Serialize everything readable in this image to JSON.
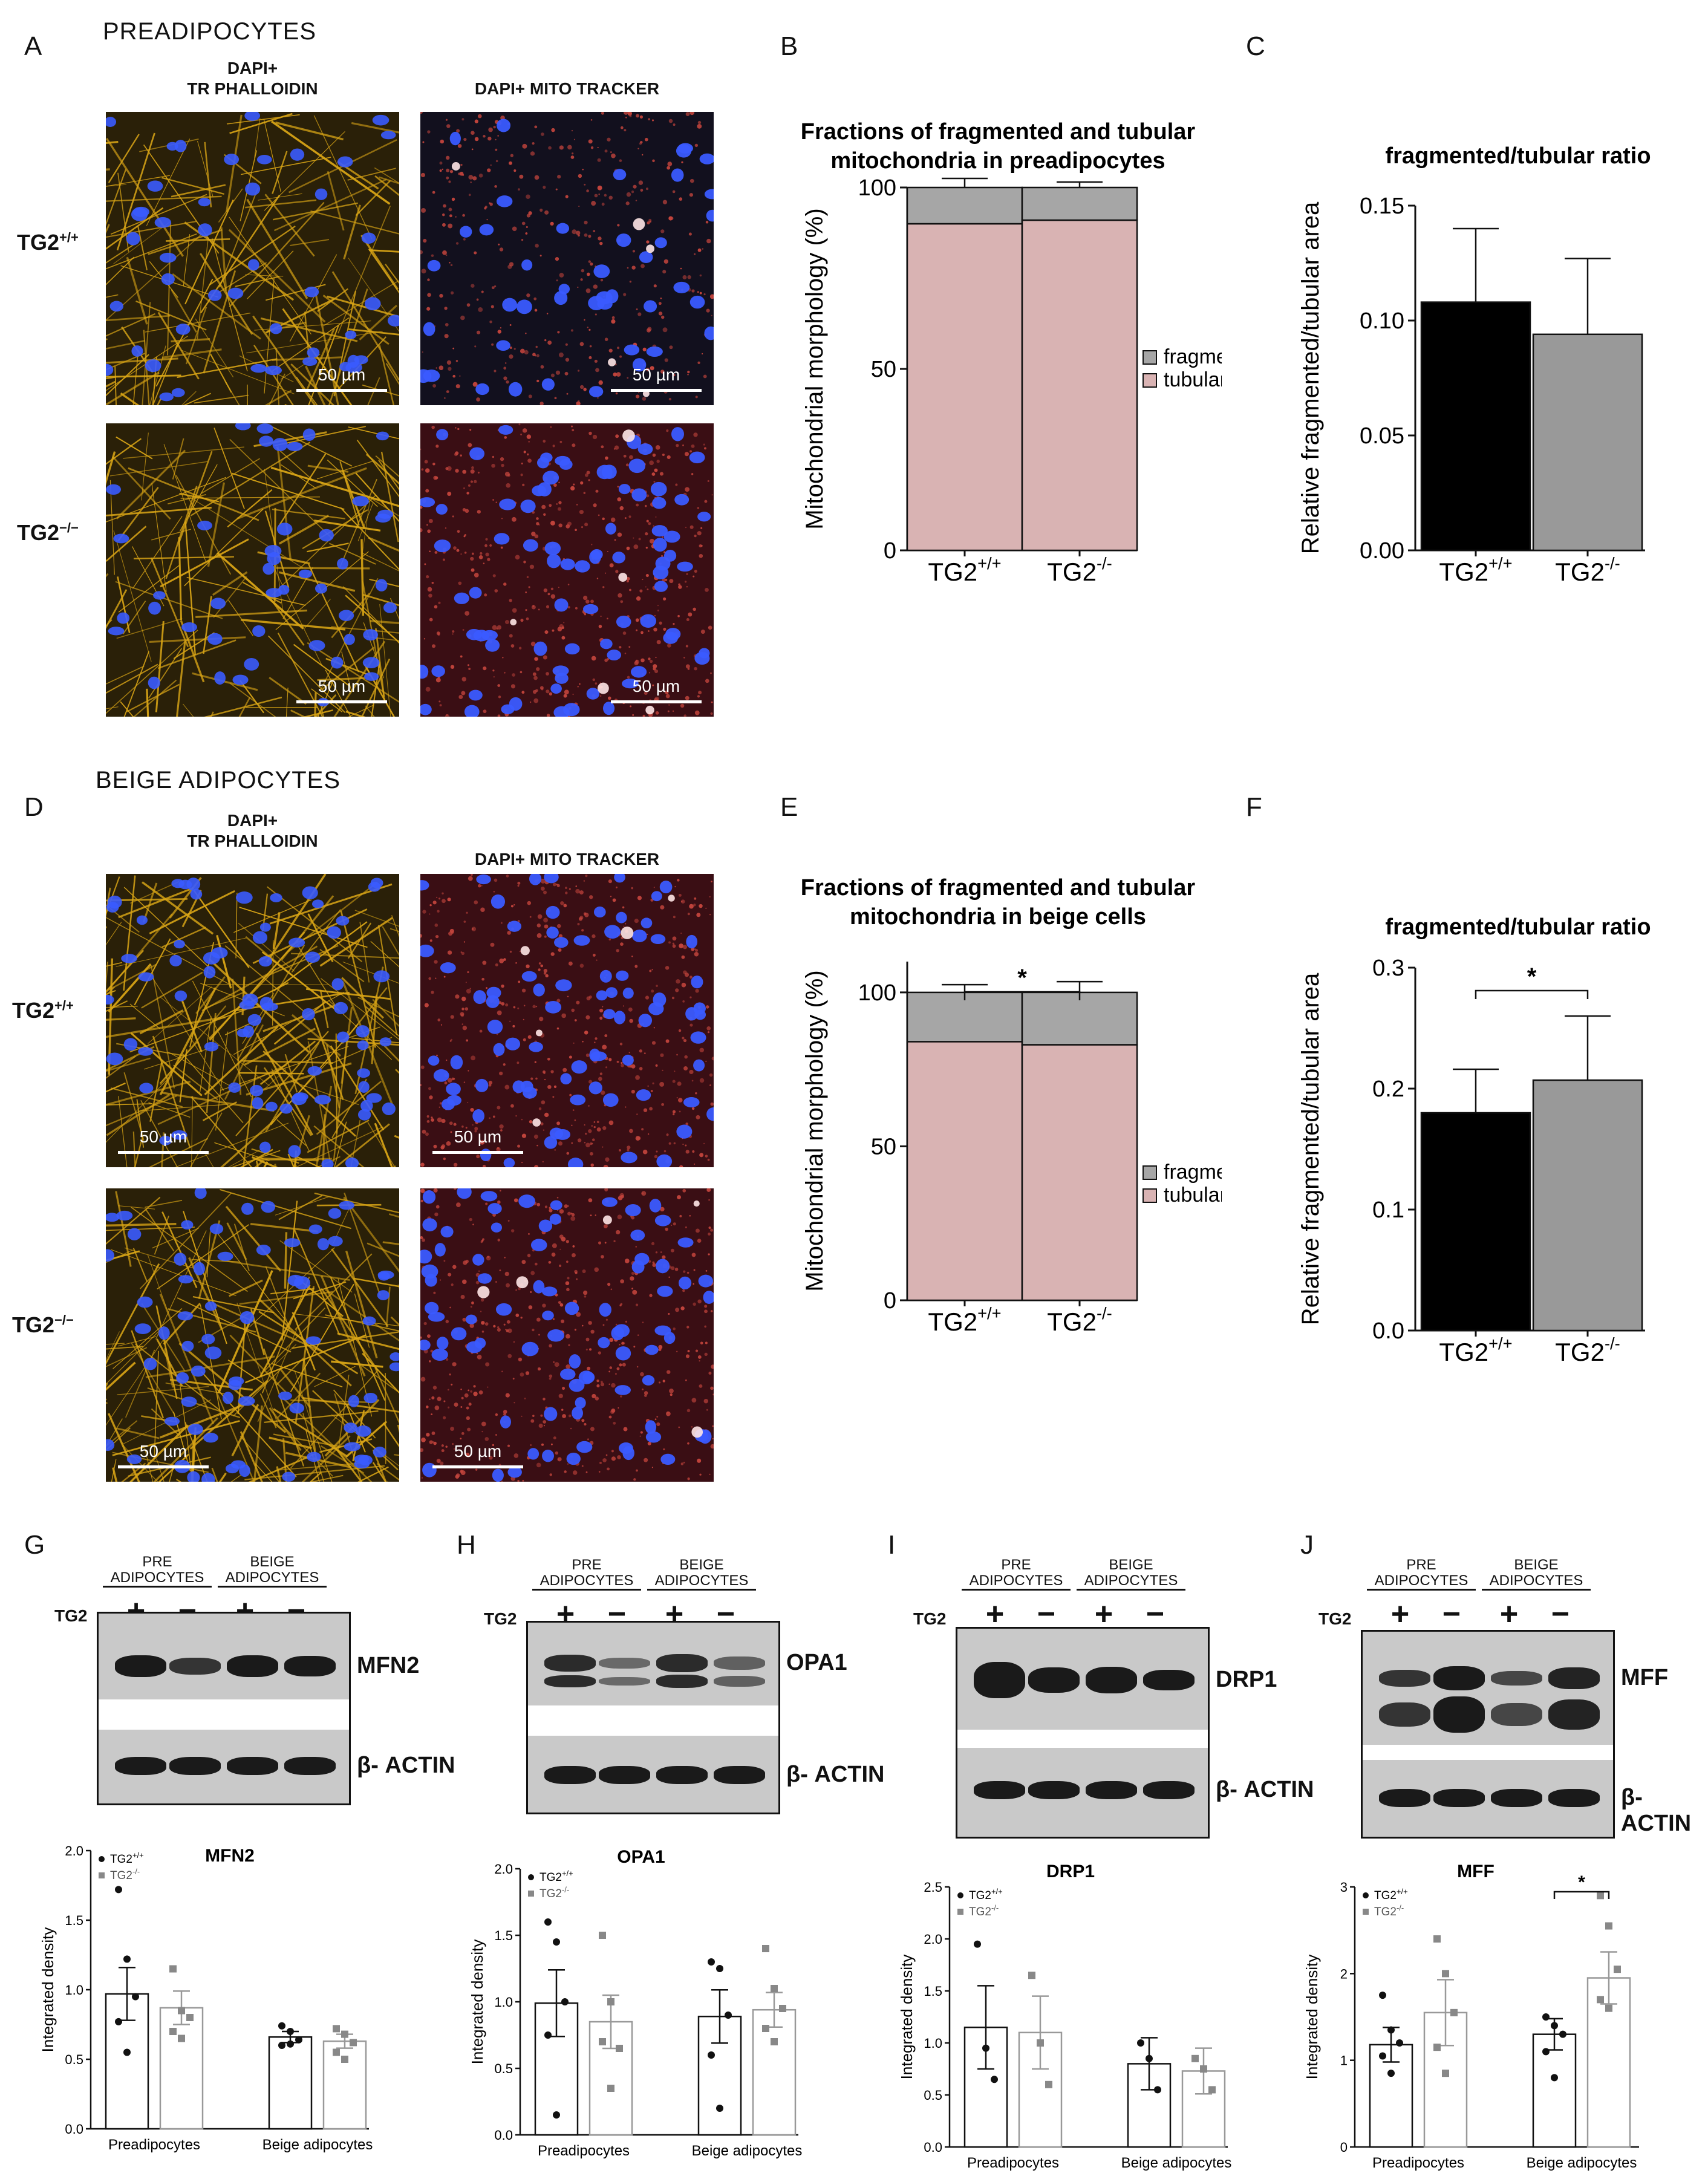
{
  "sections": {
    "pre": "PREADIPOCYTES",
    "beige": "BEIGE ADIPOCYTES"
  },
  "panel_letters": [
    "A",
    "B",
    "C",
    "D",
    "E",
    "F",
    "G",
    "H",
    "I",
    "J"
  ],
  "micrographs": {
    "col1_header_line1": "DAPI+",
    "col1_header_line2": "TR PHALLOIDIN",
    "col2_header": "DAPI+ MITO TRACKER",
    "row_wt": "TG2+/+",
    "row_ko": "TG2−/−",
    "scale": "50 µm",
    "colors": {
      "actin": "#d9a516",
      "nuclei": "#3a5bff",
      "mito": "#c2443c",
      "bg_dark": "#1a1408"
    }
  },
  "chart_data": [
    {
      "id": "B",
      "type": "bar",
      "stacked": true,
      "title": "Fractions of fragmented and tubular mitochondria in preadipocytes",
      "title_line1": "Fractions of fragmented and tubular",
      "title_line2": "mitochondria in preadipocytes",
      "ylabel": "Mitochondrial morphology (%)",
      "categories": [
        "TG2+/+",
        "TG2-/-"
      ],
      "series": [
        {
          "name": "tubular",
          "values": [
            90,
            91
          ],
          "errors": [
            2,
            1.5
          ],
          "color": "#d9b3b3"
        },
        {
          "name": "fragmented",
          "values": [
            10,
            9
          ],
          "errors": [
            2.5,
            1.5
          ],
          "color": "#a6a6a6"
        }
      ],
      "ylim": [
        0,
        100
      ],
      "yticks": [
        0,
        50,
        100
      ],
      "legend": "right"
    },
    {
      "id": "C",
      "type": "bar",
      "title": "fragmented/tubular ratio",
      "ylabel": "Relative fragmented/tubular area",
      "categories": [
        "TG2+/+",
        "TG2-/-"
      ],
      "values": [
        0.108,
        0.094
      ],
      "errors": [
        0.032,
        0.033
      ],
      "colors": [
        "#000000",
        "#999999"
      ],
      "ylim": [
        0,
        0.15
      ],
      "yticks": [
        "0.00",
        "0.05",
        "0.10",
        "0.15"
      ]
    },
    {
      "id": "E",
      "type": "bar",
      "stacked": true,
      "title": "Fractions of fragmented and tubular mitochondria in beige cells",
      "title_line1": "Fractions of fragmented and tubular",
      "title_line2": "mitochondria in beige cells",
      "ylabel": "Mitochondrial morphology (%)",
      "categories": [
        "TG2+/+",
        "TG2-/-"
      ],
      "series": [
        {
          "name": "tubular",
          "values": [
            84,
            83
          ],
          "errors": [
            3,
            3.5
          ],
          "color": "#d9b3b3"
        },
        {
          "name": "fragmented",
          "values": [
            16,
            17
          ],
          "errors": [
            2.5,
            3.5
          ],
          "color": "#a6a6a6"
        }
      ],
      "ylim": [
        0,
        110
      ],
      "yticks": [
        0,
        50,
        100
      ],
      "legend": "right",
      "significance": "*"
    },
    {
      "id": "F",
      "type": "bar",
      "title": "fragmented/tubular ratio",
      "ylabel": "Relative fragmented/tubular area",
      "categories": [
        "TG2+/+",
        "TG2-/-"
      ],
      "values": [
        0.18,
        0.207
      ],
      "errors": [
        0.036,
        0.053
      ],
      "colors": [
        "#000000",
        "#999999"
      ],
      "ylim": [
        0,
        0.3
      ],
      "yticks": [
        "0.0",
        "0.1",
        "0.2",
        "0.3"
      ],
      "significance": "*"
    },
    {
      "id": "G",
      "type": "scatter-bar",
      "title": "MFN2",
      "ylabel": "Integrated density",
      "groups": [
        "Preadipocytes",
        "Beige adipocytes"
      ],
      "legend": [
        "TG2+/+",
        "TG2-/-"
      ],
      "means": [
        0.97,
        0.87,
        0.66,
        0.63
      ],
      "sems": [
        0.19,
        0.12,
        0.04,
        0.05
      ],
      "points": [
        [
          1.72,
          1.22,
          0.95,
          0.77,
          0.55
        ],
        [
          1.15,
          0.85,
          0.8,
          0.7,
          0.65
        ],
        [
          0.74,
          0.7,
          0.64,
          0.6,
          0.61
        ],
        [
          0.72,
          0.68,
          0.62,
          0.55,
          0.5
        ]
      ],
      "ylim": [
        0,
        2.0
      ],
      "yticks": [
        "0.0",
        "0.5",
        "1.0",
        "1.5",
        "2.0"
      ]
    },
    {
      "id": "H",
      "type": "scatter-bar",
      "title": "OPA1",
      "ylabel": "Integrated density",
      "groups": [
        "Preadipocytes",
        "Beige adipocytes"
      ],
      "legend": [
        "TG2+/+",
        "TG2-/-"
      ],
      "means": [
        0.99,
        0.85,
        0.89,
        0.94
      ],
      "sems": [
        0.25,
        0.2,
        0.2,
        0.13
      ],
      "points": [
        [
          1.6,
          1.45,
          1.0,
          0.75,
          0.15
        ],
        [
          1.5,
          1.0,
          0.65,
          0.7,
          0.35
        ],
        [
          1.3,
          1.25,
          0.9,
          0.6,
          0.2
        ],
        [
          1.4,
          1.1,
          0.95,
          0.8,
          0.7
        ]
      ],
      "ylim": [
        0,
        2.0
      ],
      "yticks": [
        "0.0",
        "0.5",
        "1.0",
        "1.5",
        "2.0"
      ]
    },
    {
      "id": "I",
      "type": "scatter-bar",
      "title": "DRP1",
      "ylabel": "Integrated density",
      "groups": [
        "Preadipocytes",
        "Beige adipocytes"
      ],
      "legend": [
        "TG2+/+",
        "TG2-/-"
      ],
      "means": [
        1.15,
        1.1,
        0.8,
        0.73
      ],
      "sems": [
        0.4,
        0.35,
        0.25,
        0.22
      ],
      "points": [
        [
          1.95,
          0.95,
          0.65
        ],
        [
          1.65,
          1.0,
          0.6
        ],
        [
          1.0,
          0.85,
          0.55
        ],
        [
          0.85,
          0.75,
          0.55
        ]
      ],
      "ylim": [
        0,
        2.5
      ],
      "yticks": [
        "0.0",
        "0.5",
        "1.0",
        "1.5",
        "2.0",
        "2.5"
      ]
    },
    {
      "id": "J",
      "type": "scatter-bar",
      "title": "MFF",
      "ylabel": "Integrated density",
      "groups": [
        "Preadipocytes",
        "Beige adipocytes"
      ],
      "legend": [
        "TG2+/+",
        "TG2-/-"
      ],
      "means": [
        1.18,
        1.55,
        1.3,
        1.95
      ],
      "sems": [
        0.2,
        0.38,
        0.18,
        0.3
      ],
      "points": [
        [
          1.75,
          1.35,
          1.2,
          1.05,
          0.85
        ],
        [
          2.4,
          2.0,
          1.55,
          1.15,
          0.85
        ],
        [
          1.5,
          1.4,
          1.3,
          1.1,
          0.8
        ],
        [
          2.9,
          2.55,
          2.05,
          1.7,
          1.6
        ]
      ],
      "ylim": [
        0,
        3
      ],
      "yticks": [
        "0",
        "1",
        "2",
        "3"
      ],
      "significance": "*"
    }
  ],
  "blots": {
    "hdr_pre_1": "PRE",
    "hdr_pre_2": "ADIPOCYTES",
    "hdr_beige_1": "BEIGE",
    "hdr_beige_2": "ADIPOCYTES",
    "tg2": "TG2",
    "plus": "+",
    "minus": "−",
    "actin": "β- ACTIN",
    "proteins": [
      "MFN2",
      "OPA1",
      "DRP1",
      "MFF"
    ]
  }
}
